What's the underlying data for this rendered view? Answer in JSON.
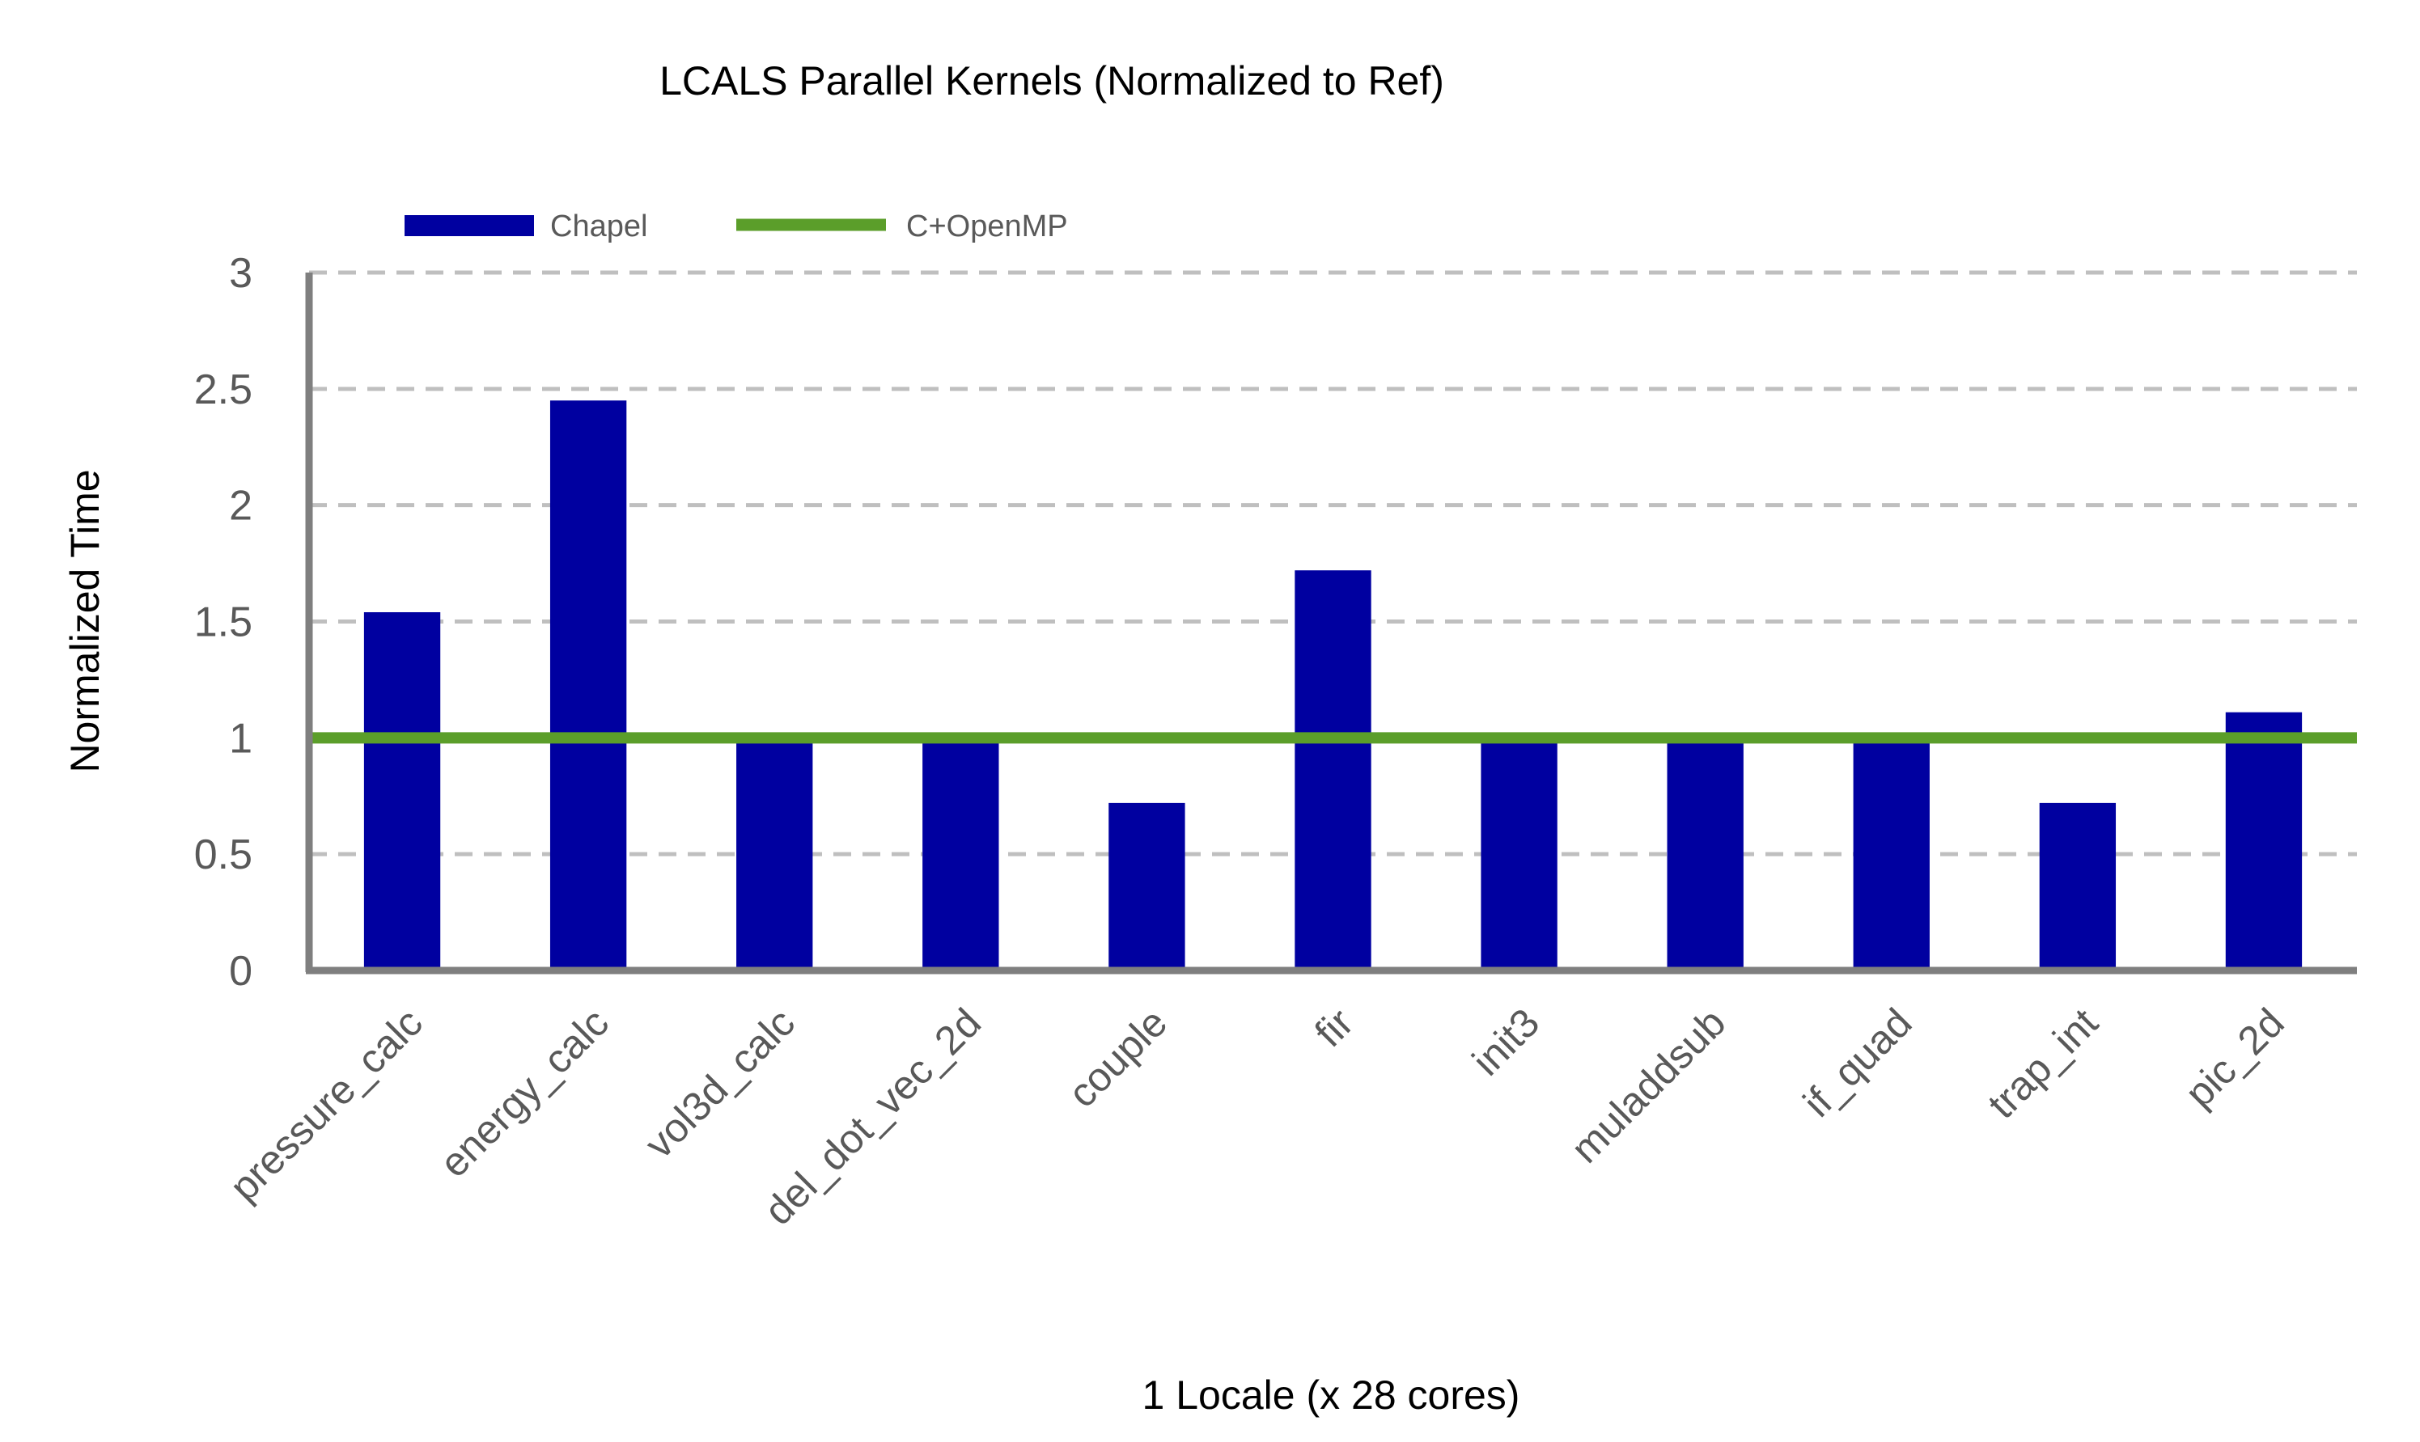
{
  "chart_data": {
    "type": "bar",
    "title": "LCALS  Parallel Kernels (Normalized to Ref)",
    "xlabel": "1 Locale (x 28 cores)",
    "ylabel": "Normalized Time",
    "ylim": [
      0,
      3
    ],
    "yticks": [
      "0",
      "0.5",
      "1",
      "1.5",
      "2",
      "2.5",
      "3"
    ],
    "grid": "dashed horizontal",
    "legend_position": "top-left",
    "categories": [
      "pressure_calc",
      "energy_calc",
      "vol3d_calc",
      "del_dot_vec_2d",
      "couple",
      "fir",
      "init3",
      "muladdsub",
      "if_quad",
      "trap_int",
      "pic_2d"
    ],
    "series": [
      {
        "name": "Chapel",
        "kind": "bar",
        "color": "#0000A0",
        "values": [
          1.54,
          2.45,
          1.02,
          1.02,
          0.72,
          1.72,
          0.99,
          0.99,
          0.99,
          0.72,
          1.11
        ]
      },
      {
        "name": "C+OpenMP",
        "kind": "reference-line",
        "color": "#5B9E2A",
        "value": 1
      }
    ]
  }
}
